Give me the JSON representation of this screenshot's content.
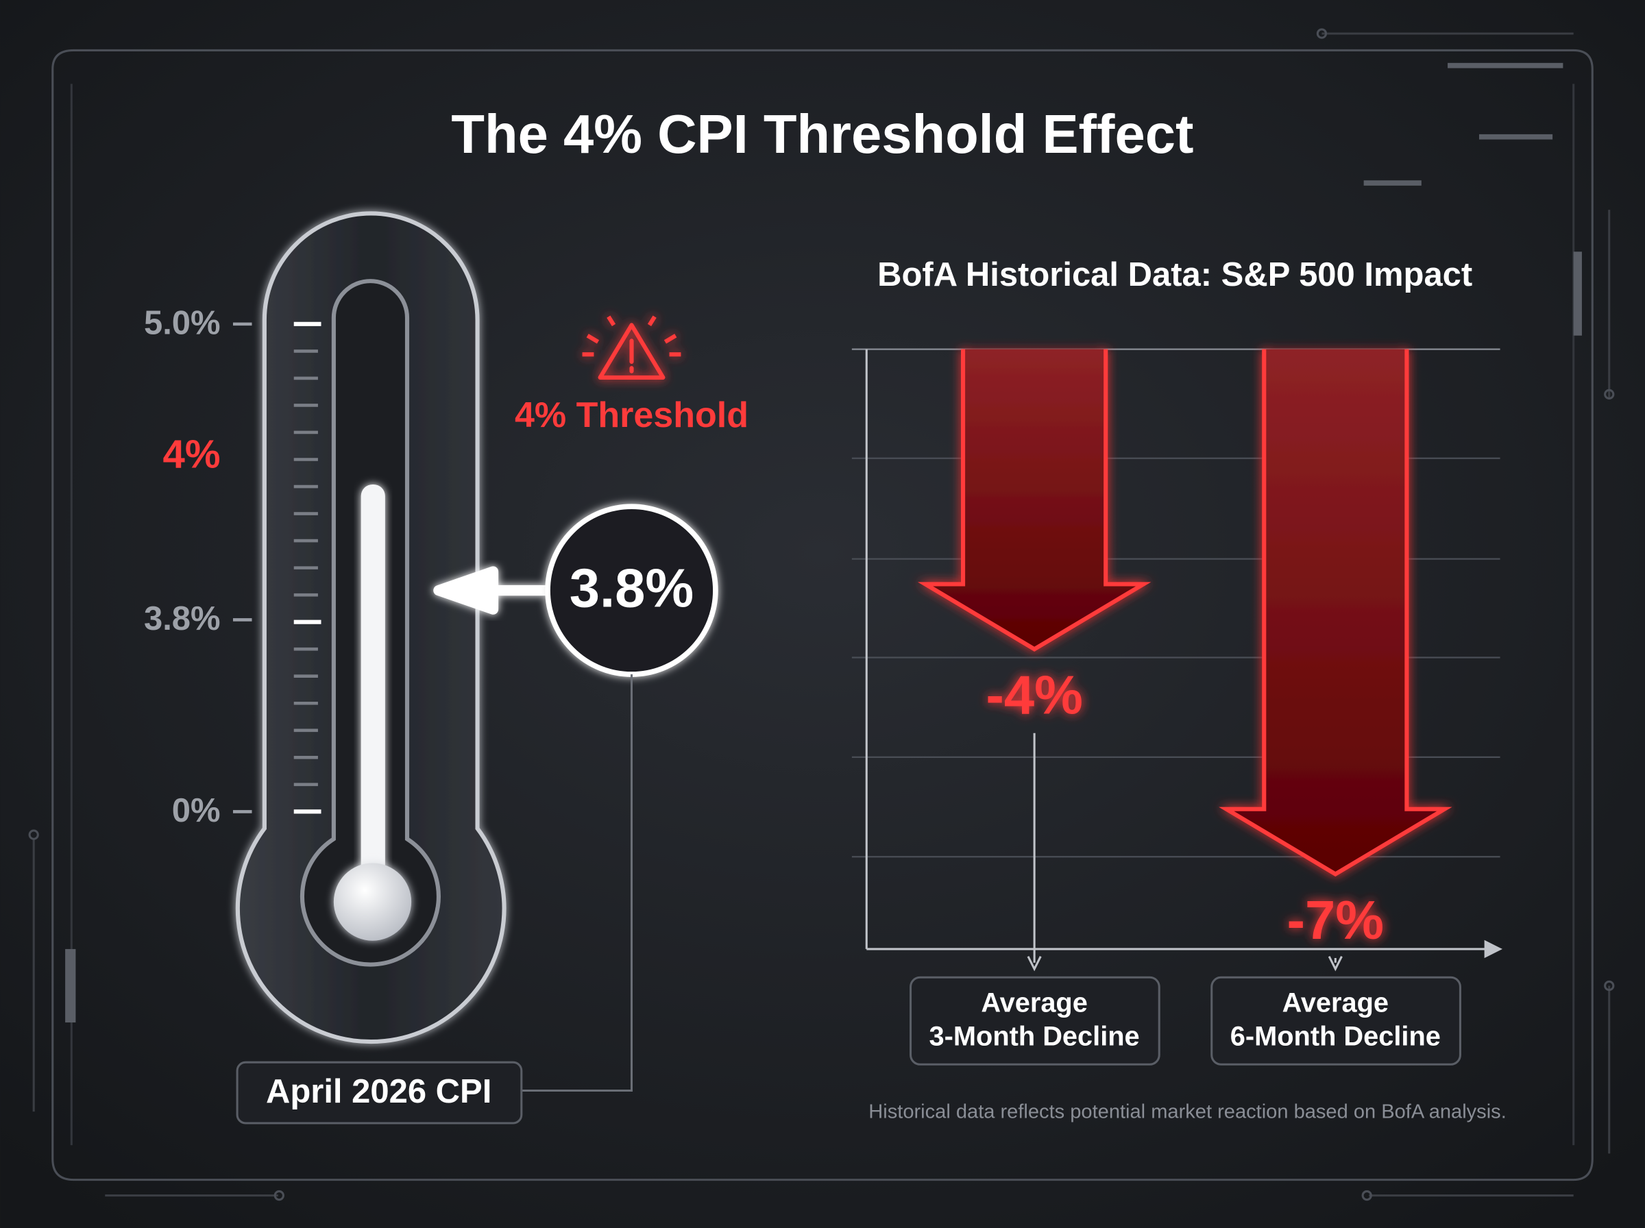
{
  "title": "The 4% CPI Threshold Effect",
  "thermometer": {
    "scale_labels": [
      "5.0%",
      "4%",
      "3.8%",
      "0%"
    ],
    "threshold_label": "4% Threshold",
    "reading": "3.8%",
    "caption": "April 2026 CPI"
  },
  "chart_data": {
    "type": "bar",
    "title": "BofA Historical Data: S&P 500 Impact",
    "categories": [
      [
        "Average",
        "3-Month Decline"
      ],
      [
        "Average",
        "6-Month Decline"
      ]
    ],
    "values": [
      -4,
      -7
    ],
    "value_labels": [
      "-4%",
      "-7%"
    ],
    "color": "#ff3b3b",
    "ylim": [
      0,
      -8
    ],
    "note": "Historical data reflects potential market reaction based on BofA analysis."
  }
}
